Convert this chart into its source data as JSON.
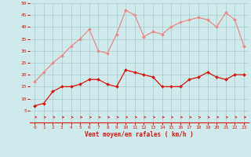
{
  "x": [
    0,
    1,
    2,
    3,
    4,
    5,
    6,
    7,
    8,
    9,
    10,
    11,
    12,
    13,
    14,
    15,
    16,
    17,
    18,
    19,
    20,
    21,
    22,
    23
  ],
  "wind_avg": [
    7,
    8,
    13,
    15,
    15,
    16,
    18,
    18,
    16,
    15,
    22,
    21,
    20,
    19,
    15,
    15,
    15,
    18,
    19,
    21,
    19,
    18,
    20,
    20
  ],
  "wind_gust": [
    17,
    21,
    25,
    28,
    32,
    35,
    39,
    30,
    29,
    37,
    47,
    45,
    36,
    38,
    37,
    40,
    42,
    43,
    44,
    43,
    40,
    46,
    43,
    32
  ],
  "bg_color": "#ceeaea",
  "grid_color": "#aacccc",
  "line_avg_color": "#dd1111",
  "line_gust_color": "#ee8888",
  "arrow_color": "#dd1111",
  "xlabel": "Vent moyen/en rafales ( km/h )",
  "ylim": [
    0,
    50
  ],
  "yticks": [
    5,
    10,
    15,
    20,
    25,
    30,
    35,
    40,
    45,
    50
  ],
  "xlim": [
    -0.5,
    23.5
  ],
  "xticks": [
    0,
    1,
    2,
    3,
    4,
    5,
    6,
    7,
    8,
    9,
    10,
    11,
    12,
    13,
    14,
    15,
    16,
    17,
    18,
    19,
    20,
    21,
    22,
    23
  ]
}
